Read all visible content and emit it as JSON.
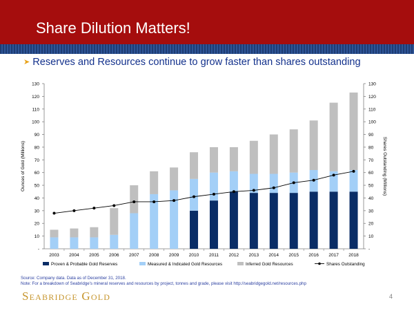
{
  "slide": {
    "title": "Share Dilution Matters!",
    "bullet": "Reserves and Resources continue to grow faster than shares outstanding",
    "source": "Source: Company data. Data as of December 31, 2018.",
    "note": "Note: For a breakdown of Seabridge's mineral reserves and resources by project, tonnes and grade, please visit http://seabridgegold.net/resources.php",
    "logo": "Seabridge Gold",
    "page_number": "4"
  },
  "colors": {
    "title_bar": "#a50d0d",
    "stripe": "#1d3c74",
    "bullet_text": "#13318c",
    "proven": "#0a2d66",
    "measured": "#a3cff7",
    "inferred": "#bfbfbf",
    "shares_line": "#000000",
    "logo": "#c6952c"
  },
  "chart_data": {
    "type": "bar",
    "stacked": true,
    "categories": [
      "2003",
      "2004",
      "2005",
      "2006",
      "2007",
      "2008",
      "2009",
      "2010",
      "2011",
      "2012",
      "2013",
      "2014",
      "2015",
      "2016",
      "2017",
      "2018"
    ],
    "series": [
      {
        "name": "Proven & Probable Gold Reserves",
        "type": "bar",
        "axis": "left",
        "values": [
          0,
          0,
          0,
          0,
          0,
          0,
          0,
          30,
          38,
          45,
          44,
          44,
          44,
          45,
          45,
          45
        ]
      },
      {
        "name": "Measured & Indicated Gold Resources",
        "type": "bar",
        "axis": "left",
        "values": [
          9,
          9,
          9,
          11,
          28,
          43,
          46,
          25,
          22,
          16,
          15,
          15,
          16,
          17,
          16,
          17
        ]
      },
      {
        "name": "Inferred Gold Resources",
        "type": "bar",
        "axis": "left",
        "values": [
          6,
          7,
          8,
          21,
          22,
          18,
          18,
          21,
          20,
          19,
          26,
          31,
          34,
          39,
          54,
          61
        ]
      },
      {
        "name": "Shares Outstanding",
        "type": "line",
        "axis": "right",
        "values": [
          28,
          30,
          32,
          34,
          37,
          37,
          38,
          41,
          43,
          45,
          46,
          48,
          52,
          54,
          58,
          61
        ]
      }
    ],
    "ylabel": "Ounces of Gold (Millions)",
    "y2label": "Shares Outstanding (Millions)",
    "ylim": [
      0,
      130
    ],
    "y2lim": [
      0,
      130
    ],
    "yticks": [
      "-",
      "10",
      "20",
      "30",
      "40",
      "50",
      "60",
      "70",
      "80",
      "90",
      "100",
      "110",
      "120",
      "130"
    ],
    "y2ticks": [
      "-",
      "10",
      "20",
      "30",
      "40",
      "50",
      "60",
      "70",
      "80",
      "90",
      "100",
      "110",
      "120",
      "130"
    ],
    "grid": false,
    "legend_position": "bottom"
  }
}
